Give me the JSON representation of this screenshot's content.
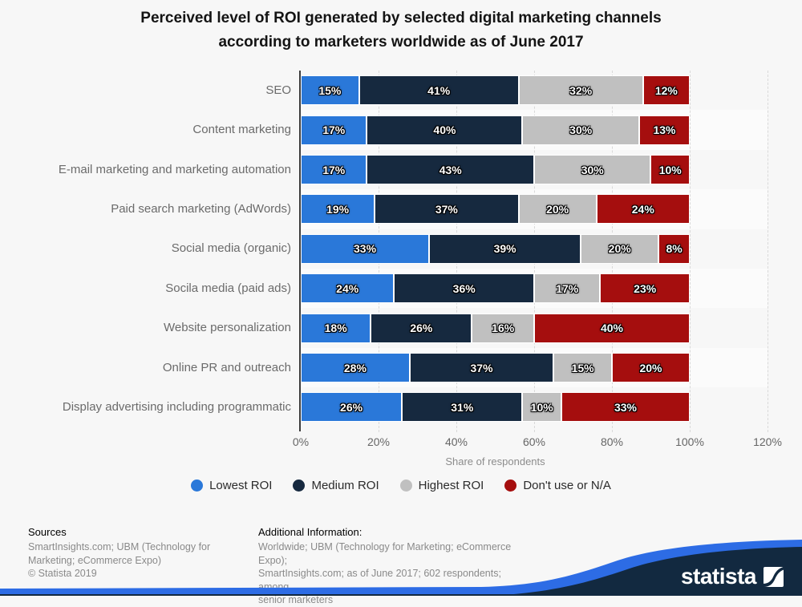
{
  "title": {
    "line1": "Perceived level of ROI generated by selected digital marketing channels",
    "line2": "according to marketers worldwide as of June 2017"
  },
  "chart_data": {
    "type": "bar",
    "orientation": "horizontal",
    "stacked": true,
    "title": "Perceived level of ROI generated by selected digital marketing channels according to marketers worldwide as of June 2017",
    "categories": [
      "SEO",
      "Content marketing",
      "E-mail marketing and marketing automation",
      "Paid search marketing (AdWords)",
      "Social media (organic)",
      "Socila media (paid ads)",
      "Website personalization",
      "Online PR and outreach",
      "Display advertising including programmatic"
    ],
    "series": [
      {
        "name": "Lowest ROI",
        "color": "#2a78d9",
        "values": [
          15,
          17,
          17,
          19,
          33,
          24,
          18,
          28,
          26
        ]
      },
      {
        "name": "Medium ROI",
        "color": "#16293f",
        "values": [
          41,
          40,
          43,
          37,
          39,
          36,
          26,
          37,
          31
        ]
      },
      {
        "name": "Highest ROI",
        "color": "#c0c0c0",
        "values": [
          32,
          30,
          30,
          20,
          20,
          17,
          16,
          15,
          10
        ]
      },
      {
        "name": "Don't use or N/A",
        "color": "#a50e0e",
        "values": [
          12,
          13,
          10,
          24,
          8,
          23,
          40,
          20,
          33
        ]
      }
    ],
    "value_suffix": "%",
    "xlabel": "Share of respondents",
    "x_ticks": [
      "0%",
      "20%",
      "40%",
      "60%",
      "80%",
      "100%",
      "120%"
    ],
    "xlim": [
      0,
      120
    ],
    "grid": "dashed-vertical",
    "legend_position": "bottom"
  },
  "footer": {
    "sources_title": "Sources",
    "sources_lines": [
      "SmartInsights.com; UBM (Technology for",
      "Marketing; eCommerce Expo)",
      "© Statista 2019"
    ],
    "additional_title": "Additional Information:",
    "additional_lines": [
      "Worldwide; UBM (Technology for Marketing; eCommerce Expo);",
      "SmartInsights.com; as of June 2017; 602 respondents; among",
      "senior marketers"
    ],
    "brand": "statista"
  },
  "colors": {
    "background": "#f7f7f7",
    "footer_navy": "#122940",
    "footer_blue": "#2d6ce5",
    "axis_line": "#3c3c3c",
    "gridline": "#d9d9d9"
  }
}
